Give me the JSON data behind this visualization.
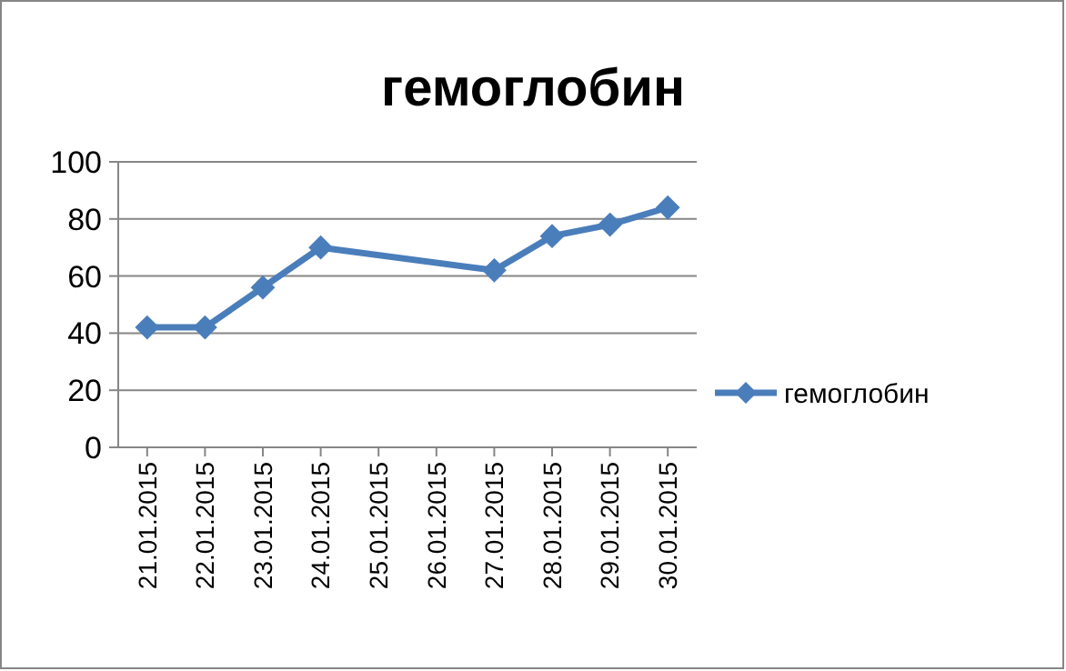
{
  "chart_data": {
    "type": "line",
    "title": "гемоглобин",
    "x": [
      "2015-01-21",
      "2015-01-22",
      "2015-01-23",
      "2015-01-24",
      "2015-01-27",
      "2015-01-28",
      "2015-01-29",
      "2015-01-30"
    ],
    "series": [
      {
        "name": "гемоглобин",
        "color": "#4a7ebb",
        "values": [
          42,
          42,
          56,
          70,
          62,
          74,
          78,
          84
        ]
      }
    ],
    "xlim": [
      "2015-01-20T12:00",
      "2015-01-30T12:00"
    ],
    "xticks": [
      {
        "value": "2015-01-21",
        "label": "21.01.2015"
      },
      {
        "value": "2015-01-22",
        "label": "22.01.2015"
      },
      {
        "value": "2015-01-23",
        "label": "23.01.2015"
      },
      {
        "value": "2015-01-24",
        "label": "24.01.2015"
      },
      {
        "value": "2015-01-25",
        "label": "25.01.2015"
      },
      {
        "value": "2015-01-26",
        "label": "26.01.2015"
      },
      {
        "value": "2015-01-27",
        "label": "27.01.2015"
      },
      {
        "value": "2015-01-28",
        "label": "28.01.2015"
      },
      {
        "value": "2015-01-29",
        "label": "29.01.2015"
      },
      {
        "value": "2015-01-30",
        "label": "30.01.2015"
      }
    ],
    "ylim": [
      0,
      100
    ],
    "yticks": [
      0,
      20,
      40,
      60,
      80,
      100
    ],
    "grid": "y",
    "legend": "right",
    "marker": "diamond",
    "line_style": "solid"
  }
}
